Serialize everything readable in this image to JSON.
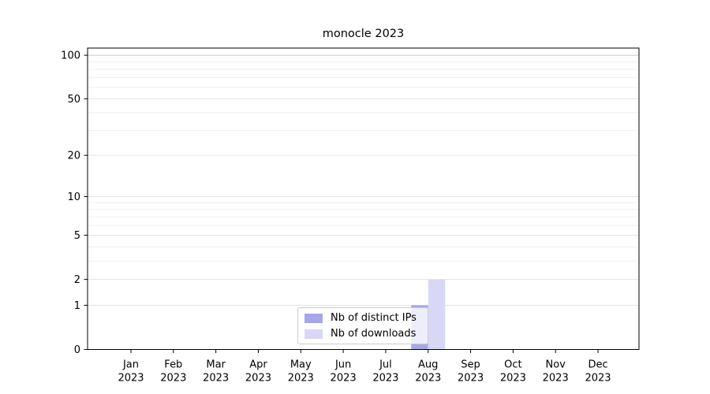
{
  "chart_data": {
    "type": "bar",
    "title": "monocle 2023",
    "x_categories": [
      "Jan",
      "Feb",
      "Mar",
      "Apr",
      "May",
      "Jun",
      "Jul",
      "Aug",
      "Sep",
      "Oct",
      "Nov",
      "Dec"
    ],
    "x_year": "2023",
    "series": [
      {
        "name": "Nb of distinct IPs",
        "color": "#a6a6e9",
        "values": [
          0,
          0,
          0,
          0,
          0,
          0,
          0,
          1,
          0,
          0,
          0,
          0
        ]
      },
      {
        "name": "Nb of downloads",
        "color": "#d8d8f6",
        "values": [
          0,
          0,
          0,
          0,
          0,
          0,
          0,
          2,
          0,
          0,
          0,
          0
        ]
      }
    ],
    "y_scale": "log1p",
    "y_major_ticks": [
      0,
      1,
      2,
      5,
      10,
      20,
      50,
      100
    ],
    "y_minor_ticks": [
      3,
      4,
      6,
      7,
      8,
      9,
      30,
      40,
      60,
      70,
      80,
      90
    ],
    "ylim": [
      0,
      112
    ],
    "grid": true,
    "legend_position": "lower center"
  },
  "style": {
    "axis_color": "#000000",
    "text_color": "#000000",
    "grid_minor_color": "#efefef",
    "grid_major_color": "#e2e2e2",
    "grid_top_color": "#c6c6c6",
    "legend_border_color": "#cccccc"
  }
}
